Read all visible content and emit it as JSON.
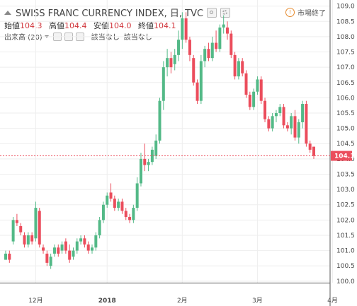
{
  "header": {
    "title": "SWISS FRANC CURRENCY INDEX, 日, TVC",
    "ohlc": [
      {
        "label": "始値",
        "value": "104.3"
      },
      {
        "label": "高値",
        "value": "104.4"
      },
      {
        "label": "安値",
        "value": "104.0"
      },
      {
        "label": "終値",
        "value": "104.1"
      }
    ],
    "volume_label": "出来高 (20)",
    "volume_na_1": "該当なし",
    "volume_na_2": "該当なし",
    "market_status": "市場終了",
    "market_status_icon": "clock-icon"
  },
  "colors": {
    "up": "#53b987",
    "down": "#eb4d5c",
    "price_label_bg": "#eb4d5c"
  },
  "current_price_label": "104.1",
  "chart_data": {
    "type": "candlestick",
    "ylim": [
      99.95,
      109.2
    ],
    "y_ticks": [
      "100.0",
      "100.5",
      "101.0",
      "101.5",
      "102.0",
      "102.5",
      "103.0",
      "103.5",
      "104.0",
      "104.5",
      "105.0",
      "105.5",
      "106.0",
      "106.5",
      "107.0",
      "107.5",
      "108.0",
      "108.5",
      "109.0"
    ],
    "x_labels": [
      "12月",
      "2018",
      "2月",
      "3月",
      "4月"
    ],
    "x_label_index": [
      8,
      27,
      47,
      67,
      87
    ],
    "current_price": 104.1,
    "candles": [
      [
        100.7,
        101.0,
        100.7,
        100.9
      ],
      [
        100.9,
        101.0,
        100.6,
        100.7
      ],
      [
        101.3,
        102.1,
        101.2,
        102.0
      ],
      [
        102.0,
        102.2,
        101.8,
        101.9
      ],
      [
        101.8,
        101.9,
        101.5,
        101.6
      ],
      [
        101.5,
        101.6,
        101.1,
        101.2
      ],
      [
        101.2,
        101.6,
        101.1,
        101.5
      ],
      [
        101.5,
        101.6,
        101.2,
        101.3
      ],
      [
        101.4,
        102.6,
        101.3,
        102.4
      ],
      [
        102.3,
        102.4,
        101.1,
        101.2
      ],
      [
        101.1,
        101.2,
        100.9,
        101.0
      ],
      [
        100.9,
        101.0,
        100.5,
        100.6
      ],
      [
        100.5,
        100.9,
        100.4,
        100.8
      ],
      [
        100.9,
        101.2,
        100.8,
        101.1
      ],
      [
        101.1,
        101.2,
        100.8,
        100.9
      ],
      [
        101.0,
        101.3,
        100.9,
        101.2
      ],
      [
        101.3,
        101.4,
        100.9,
        101.0
      ],
      [
        101.0,
        101.2,
        100.6,
        100.7
      ],
      [
        100.8,
        101.1,
        100.7,
        101.0
      ],
      [
        101.0,
        101.4,
        100.9,
        101.3
      ],
      [
        101.3,
        101.5,
        101.2,
        101.4
      ],
      [
        101.4,
        101.5,
        101.1,
        101.2
      ],
      [
        101.2,
        101.3,
        100.9,
        101.0
      ],
      [
        101.0,
        101.2,
        100.9,
        101.1
      ],
      [
        101.1,
        101.6,
        101.0,
        101.5
      ],
      [
        101.5,
        102.1,
        101.4,
        102.0
      ],
      [
        102.0,
        102.6,
        101.9,
        102.5
      ],
      [
        102.5,
        102.9,
        102.4,
        102.8
      ],
      [
        102.9,
        103.2,
        102.6,
        102.7
      ],
      [
        102.7,
        102.8,
        102.3,
        102.4
      ],
      [
        102.4,
        102.7,
        102.3,
        102.6
      ],
      [
        102.6,
        102.7,
        102.2,
        102.3
      ],
      [
        102.3,
        102.4,
        102.0,
        102.1
      ],
      [
        102.1,
        102.2,
        101.9,
        102.0
      ],
      [
        102.0,
        102.5,
        101.9,
        102.4
      ],
      [
        102.4,
        103.4,
        102.3,
        103.2
      ],
      [
        103.2,
        104.2,
        103.1,
        104.0
      ],
      [
        104.0,
        104.5,
        103.6,
        103.8
      ],
      [
        103.8,
        104.0,
        103.6,
        103.9
      ],
      [
        103.9,
        104.4,
        103.8,
        104.3
      ],
      [
        104.1,
        104.8,
        104.0,
        104.6
      ],
      [
        104.6,
        106.0,
        104.5,
        105.9
      ],
      [
        105.9,
        107.2,
        105.6,
        107.0
      ],
      [
        107.0,
        107.6,
        106.7,
        107.3
      ],
      [
        107.3,
        107.5,
        106.8,
        107.0
      ],
      [
        107.1,
        107.6,
        106.9,
        107.4
      ],
      [
        107.4,
        108.2,
        107.2,
        107.9
      ],
      [
        107.9,
        108.8,
        107.6,
        108.6
      ],
      [
        108.6,
        108.8,
        107.8,
        107.9
      ],
      [
        107.9,
        108.0,
        107.2,
        107.4
      ],
      [
        107.3,
        107.4,
        106.4,
        106.5
      ],
      [
        106.5,
        106.6,
        105.8,
        105.9
      ],
      [
        105.9,
        107.4,
        105.8,
        107.2
      ],
      [
        107.2,
        107.7,
        107.0,
        107.6
      ],
      [
        107.6,
        107.8,
        107.2,
        107.3
      ],
      [
        107.3,
        108.0,
        107.2,
        107.8
      ],
      [
        107.8,
        108.2,
        107.5,
        107.6
      ],
      [
        107.6,
        108.4,
        107.5,
        108.3
      ],
      [
        108.3,
        108.7,
        108.1,
        108.4
      ],
      [
        108.3,
        108.5,
        107.9,
        108.1
      ],
      [
        108.1,
        108.2,
        107.3,
        107.4
      ],
      [
        107.4,
        107.5,
        106.6,
        106.7
      ],
      [
        106.7,
        107.3,
        106.6,
        107.2
      ],
      [
        107.2,
        107.3,
        106.7,
        106.8
      ],
      [
        106.8,
        106.9,
        106.0,
        106.1
      ],
      [
        106.1,
        106.2,
        105.6,
        105.7
      ],
      [
        105.7,
        106.3,
        105.6,
        106.2
      ],
      [
        106.2,
        106.7,
        106.1,
        106.6
      ],
      [
        106.6,
        106.7,
        105.8,
        105.9
      ],
      [
        105.9,
        106.0,
        105.2,
        105.3
      ],
      [
        105.3,
        105.4,
        104.9,
        105.0
      ],
      [
        105.0,
        105.5,
        104.9,
        105.4
      ],
      [
        105.4,
        105.6,
        105.2,
        105.5
      ],
      [
        105.5,
        105.8,
        105.4,
        105.7
      ],
      [
        105.7,
        105.8,
        105.0,
        105.1
      ],
      [
        105.1,
        105.2,
        104.9,
        105.0
      ],
      [
        105.0,
        105.5,
        104.8,
        105.4
      ],
      [
        105.4,
        105.6,
        104.6,
        104.7
      ],
      [
        104.7,
        105.3,
        104.5,
        105.2
      ],
      [
        105.2,
        105.9,
        105.0,
        105.8
      ],
      [
        105.8,
        105.9,
        104.4,
        104.5
      ],
      [
        104.5,
        104.6,
        104.2,
        104.3
      ],
      [
        104.4,
        104.4,
        104.0,
        104.1
      ]
    ]
  }
}
